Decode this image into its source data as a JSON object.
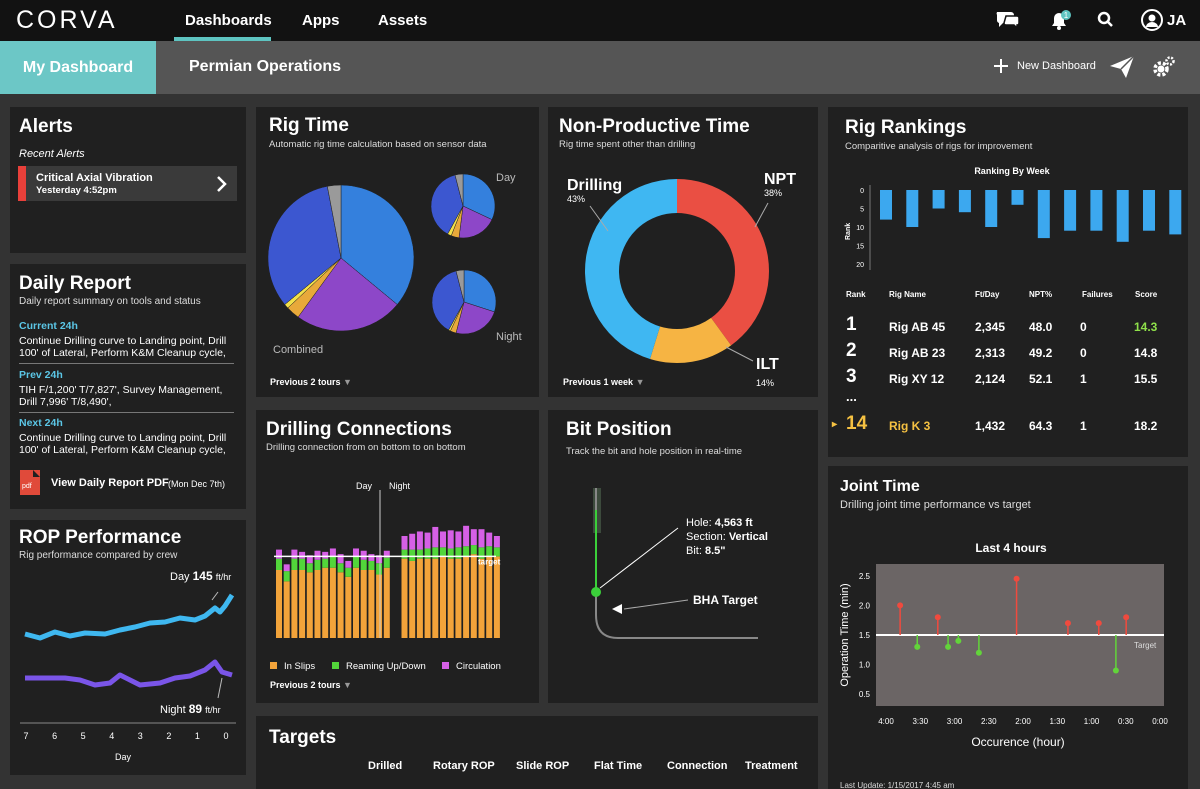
{
  "app": {
    "logo": "CORVA"
  },
  "nav": {
    "tabs": [
      "Dashboards",
      "Apps",
      "Assets"
    ],
    "notification_badge": "1",
    "user_initials": "JA"
  },
  "subnav": {
    "tabs": [
      "My Dashboard",
      "Permian Operations"
    ],
    "new_dashboard": "New Dashboard"
  },
  "alerts": {
    "title": "Alerts",
    "subtitle": "Recent Alerts",
    "item": {
      "title": "Critical Axial Vibration",
      "time": "Yesterday 4:52pm"
    }
  },
  "daily_report": {
    "title": "Daily Report",
    "subtitle": "Daily report summary on tools and status",
    "sections": [
      {
        "label": "Current 24h",
        "text": "Continue Drilling curve to Landing point, Drill 100' of Lateral, Perform K&M Cleanup cycle,"
      },
      {
        "label": "Prev 24h",
        "text": "TIH F/1,200' T/7,827', Survey Management, Drill 7,996' T/8,490',"
      },
      {
        "label": "Next 24h",
        "text": "Continue Drilling curve to Landing point, Drill 100' of Lateral, Perform K&M Cleanup cycle,"
      }
    ],
    "pdf_icon_text": "pdf",
    "pdf_link": "View Daily Report PDF",
    "pdf_date": "(Mon Dec 7th)"
  },
  "rop": {
    "title": "ROP Performance",
    "subtitle": "Rig performance compared by crew",
    "day_label": "Day",
    "day_value": "145",
    "night_label": "Night",
    "night_value": "89",
    "unit": "ft/hr",
    "x_ticks": [
      "7",
      "6",
      "5",
      "4",
      "3",
      "2",
      "1",
      "0"
    ],
    "x_label": "Day",
    "colors": {
      "day": "#3fb8f0",
      "night": "#7a55e8"
    }
  },
  "rig_time": {
    "title": "Rig Time",
    "subtitle": "Automatic rig time calculation based on sensor data",
    "labels": {
      "combined": "Combined",
      "day": "Day",
      "night": "Night"
    },
    "footer": "Previous 2 tours",
    "pies": {
      "combined": [
        {
          "color": "#3480dd",
          "value": 36
        },
        {
          "color": "#8d47c8",
          "value": 24
        },
        {
          "color": "#e8a93a",
          "value": 3
        },
        {
          "color": "#f2e04a",
          "value": 1
        },
        {
          "color": "#3c57d0",
          "value": 33
        },
        {
          "color": "#9a9a9a",
          "value": 3
        }
      ],
      "day": [
        {
          "color": "#3480dd",
          "value": 32
        },
        {
          "color": "#8d47c8",
          "value": 20
        },
        {
          "color": "#e8a93a",
          "value": 4
        },
        {
          "color": "#f2e04a",
          "value": 2
        },
        {
          "color": "#3c57d0",
          "value": 38
        },
        {
          "color": "#9a9a9a",
          "value": 4
        }
      ],
      "night": [
        {
          "color": "#3480dd",
          "value": 30
        },
        {
          "color": "#8d47c8",
          "value": 24
        },
        {
          "color": "#e8a93a",
          "value": 3
        },
        {
          "color": "#f2e04a",
          "value": 1
        },
        {
          "color": "#3c57d0",
          "value": 38
        },
        {
          "color": "#9a9a9a",
          "value": 4
        }
      ]
    }
  },
  "npt": {
    "title": "Non-Productive Time",
    "subtitle": "Rig time spent other than drilling",
    "footer": "Previous 1 week",
    "segments": [
      {
        "name": "NPT",
        "pct_label": "38%",
        "value": 38,
        "color": "#ea4f43"
      },
      {
        "name": "ILT",
        "pct_label": "14%",
        "value": 14,
        "color": "#f6b443"
      },
      {
        "name": "Drilling",
        "pct_label": "43%",
        "value": 43,
        "color": "#3fb7f2"
      }
    ]
  },
  "rankings": {
    "title": "Rig Rankings",
    "subtitle": "Comparitive analysis of rigs for improvement",
    "chart": {
      "type": "bar",
      "title": "Ranking By Week",
      "ylabel": "Rank",
      "y_ticks": [
        "0",
        "5",
        "10",
        "15",
        "20"
      ],
      "ylim": [
        0,
        20
      ],
      "values": [
        8,
        10,
        5,
        6,
        10,
        4,
        13,
        11,
        11,
        14,
        11,
        12,
        8
      ],
      "highlight_index": 12,
      "colors": {
        "bar": "#3ca8ef",
        "highlight": "#f5c142"
      }
    },
    "headers": [
      "Rank",
      "Rig Name",
      "Ft/Day",
      "NPT%",
      "Failures",
      "Score"
    ],
    "rows": [
      {
        "rank": "1",
        "name": "Rig AB 45",
        "ftday": "2,345",
        "npt": "48.0",
        "failures": "0",
        "score": "14.3"
      },
      {
        "rank": "2",
        "name": "Rig AB 23",
        "ftday": "2,313",
        "npt": "49.2",
        "failures": "0",
        "score": "14.8"
      },
      {
        "rank": "3",
        "name": "Rig XY 12",
        "ftday": "2,124",
        "npt": "52.1",
        "failures": "1",
        "score": "15.5"
      },
      {
        "rank": "14",
        "name": "Rig K 3",
        "ftday": "1,432",
        "npt": "64.3",
        "failures": "1",
        "score": "18.2"
      }
    ],
    "ellipsis": "...",
    "marker": "▸",
    "colors": {
      "best_score": "#8fe04a",
      "highlight": "#f5c142"
    }
  },
  "drilling_connections": {
    "title": "Drilling Connections",
    "subtitle": "Drilling connection from on bottom to on bottom",
    "label_day": "Day",
    "label_night": "Night",
    "target_label": "target",
    "legend": [
      "In Slips",
      "Reaming Up/Down",
      "Circulation"
    ],
    "footer": "Previous 2 tours",
    "colors": {
      "slips": "#f2a33a",
      "reaming": "#52d63a",
      "circulation": "#d660e6"
    },
    "chart_data": {
      "type": "bar",
      "stacked": true,
      "ylim": [
        0,
        120
      ],
      "target": 72,
      "day_count": 15,
      "series": [
        {
          "name": "In Slips",
          "values": [
            60,
            50,
            60,
            60,
            58,
            60,
            62,
            62,
            58,
            54,
            62,
            60,
            60,
            56,
            62,
            70,
            68,
            70,
            70,
            70,
            72,
            70,
            70,
            72,
            74,
            70,
            72,
            72
          ]
        },
        {
          "name": "Reaming Up/Down",
          "values": [
            10,
            9,
            10,
            10,
            8,
            9,
            8,
            10,
            8,
            8,
            10,
            9,
            8,
            10,
            9,
            8,
            10,
            8,
            9,
            10,
            8,
            9,
            10,
            9,
            8,
            10,
            9,
            8
          ]
        },
        {
          "name": "Circulation",
          "values": [
            8,
            6,
            8,
            6,
            7,
            8,
            6,
            7,
            8,
            6,
            7,
            8,
            6,
            7,
            6,
            12,
            14,
            16,
            14,
            18,
            14,
            16,
            14,
            18,
            14,
            16,
            12,
            10
          ]
        }
      ]
    }
  },
  "bit_position": {
    "title": "Bit Position",
    "subtitle": "Track the bit and hole position in real-time",
    "hole_label": "Hole:",
    "hole_value": "4,563 ft",
    "section_label": "Section:",
    "section_value": "Vertical",
    "bit_label": "Bit:",
    "bit_value": "8.5\"",
    "bha_label": "BHA Target"
  },
  "joint_time": {
    "title": "Joint Time",
    "subtitle": "Drilling joint time performance vs target",
    "chart_title": "Last 4 hours",
    "ylabel": "Operation Time (min)",
    "xlabel": "Occurence (hour)",
    "target_label": "Target",
    "last_update": "Last Update: 1/15/2017 4:45 am",
    "chart_data": {
      "type": "scatter",
      "x_ticks": [
        "4:00",
        "3:30",
        "3:00",
        "2:30",
        "2:00",
        "1:30",
        "1:00",
        "0:30",
        "0:00"
      ],
      "y_ticks": [
        "2.5",
        "2.0",
        "1.5",
        "1.0",
        "0.5"
      ],
      "ylim": [
        0.3,
        2.7
      ],
      "target": 1.5,
      "points": [
        {
          "x": 3.75,
          "y": 2.0
        },
        {
          "x": 3.5,
          "y": 1.3
        },
        {
          "x": 3.2,
          "y": 1.8
        },
        {
          "x": 3.05,
          "y": 1.3
        },
        {
          "x": 2.9,
          "y": 1.4
        },
        {
          "x": 2.6,
          "y": 1.2
        },
        {
          "x": 2.05,
          "y": 2.45
        },
        {
          "x": 1.3,
          "y": 1.7
        },
        {
          "x": 0.85,
          "y": 1.7
        },
        {
          "x": 0.6,
          "y": 0.9
        },
        {
          "x": 0.45,
          "y": 1.8
        }
      ],
      "colors": {
        "above": "#f04a3e",
        "below": "#62d43a",
        "plot_bg": "#6b6565"
      }
    }
  },
  "targets": {
    "title": "Targets",
    "headers": [
      "Drilled",
      "Rotary ROP",
      "Slide ROP",
      "Flat Time",
      "Connection",
      "Treatment"
    ]
  }
}
